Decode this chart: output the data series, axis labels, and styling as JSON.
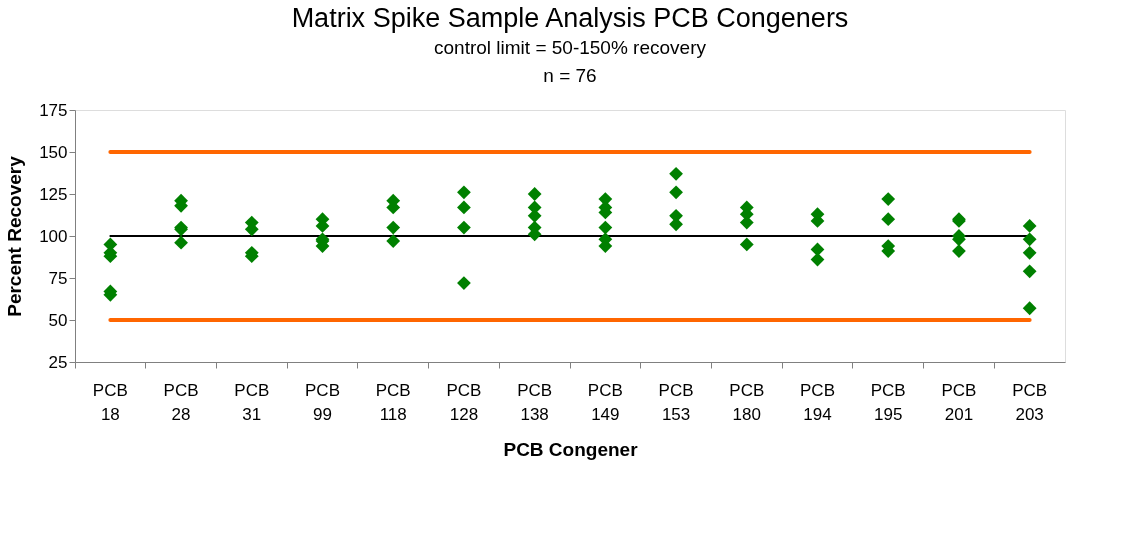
{
  "chart_data": {
    "type": "scatter",
    "title": "Matrix Spike Sample Analysis PCB Congeners",
    "subtitle": "control limit = 50-150% recovery",
    "annotations": [
      "n = 76"
    ],
    "xlabel": "PCB Congener",
    "ylabel": "Percent Recovery",
    "categories": [
      "PCB 18",
      "PCB 28",
      "PCB 31",
      "PCB 99",
      "PCB 118",
      "PCB 128",
      "PCB 138",
      "PCB 149",
      "PCB 153",
      "PCB 180",
      "PCB 194",
      "PCB 195",
      "PCB 201",
      "PCB 203"
    ],
    "series": [
      {
        "color": "#008000",
        "x": [
          "PCB 18",
          "PCB 18",
          "PCB 18",
          "PCB 18",
          "PCB 18",
          "PCB 28",
          "PCB 28",
          "PCB 28",
          "PCB 28",
          "PCB 28",
          "PCB 31",
          "PCB 31",
          "PCB 31",
          "PCB 31",
          "PCB 99",
          "PCB 99",
          "PCB 99",
          "PCB 99",
          "PCB 99",
          "PCB 118",
          "PCB 118",
          "PCB 118",
          "PCB 118",
          "PCB 128",
          "PCB 128",
          "PCB 128",
          "PCB 128",
          "PCB 138",
          "PCB 138",
          "PCB 138",
          "PCB 138",
          "PCB 138",
          "PCB 149",
          "PCB 149",
          "PCB 149",
          "PCB 149",
          "PCB 149",
          "PCB 149",
          "PCB 153",
          "PCB 153",
          "PCB 153",
          "PCB 153",
          "PCB 180",
          "PCB 180",
          "PCB 180",
          "PCB 180",
          "PCB 194",
          "PCB 194",
          "PCB 194",
          "PCB 194",
          "PCB 195",
          "PCB 195",
          "PCB 195",
          "PCB 195",
          "PCB 201",
          "PCB 201",
          "PCB 201",
          "PCB 201",
          "PCB 201",
          "PCB 203",
          "PCB 203",
          "PCB 203",
          "PCB 203",
          "PCB 203"
        ],
        "values": [
          95,
          90,
          88,
          67,
          65,
          121,
          118,
          105,
          104,
          96,
          108,
          104,
          90,
          88,
          110,
          106,
          98,
          97,
          94,
          121,
          117,
          105,
          97,
          126,
          117,
          105,
          72,
          125,
          117,
          112,
          105,
          101,
          122,
          117,
          114,
          105,
          98,
          94,
          137,
          126,
          112,
          107,
          117,
          113,
          108,
          95,
          113,
          109,
          92,
          86,
          122,
          110,
          94,
          91,
          110,
          109,
          100,
          98,
          91,
          106,
          98,
          90,
          79,
          57
        ]
      }
    ],
    "ylim": [
      25,
      175
    ],
    "yticks": [
      25,
      50,
      75,
      100,
      125,
      150,
      175
    ],
    "ref_lines": [
      {
        "axis": "y",
        "value": 150,
        "color": "#ff6600"
      },
      {
        "axis": "y",
        "value": 50,
        "color": "#ff6600"
      },
      {
        "axis": "y",
        "value": 100,
        "color": "#000000"
      }
    ],
    "marker": "diamond",
    "grid": false
  }
}
